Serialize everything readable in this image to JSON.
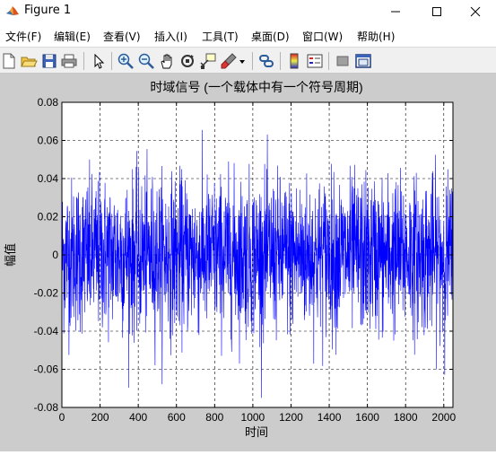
{
  "window": {
    "title": "Figure 1",
    "minimize_glyph": "—",
    "maximize_glyph": "☐",
    "close_glyph": "✕"
  },
  "menu": [
    {
      "label": "文件(F)"
    },
    {
      "label": "编辑(E)"
    },
    {
      "label": "查看(V)"
    },
    {
      "label": "插入(I)"
    },
    {
      "label": "工具(T)"
    },
    {
      "label": "桌面(D)"
    },
    {
      "label": "窗口(W)"
    },
    {
      "label": "帮助(H)"
    }
  ],
  "toolbar": {
    "items": [
      {
        "name": "new-figure-icon"
      },
      {
        "name": "open-file-icon"
      },
      {
        "name": "save-icon"
      },
      {
        "name": "print-icon"
      },
      {
        "name": "edit-plot-arrow-icon"
      },
      {
        "name": "zoom-in-icon"
      },
      {
        "name": "zoom-out-icon"
      },
      {
        "name": "pan-hand-icon"
      },
      {
        "name": "rotate-3d-icon"
      },
      {
        "name": "data-cursor-icon"
      },
      {
        "name": "brush-icon"
      },
      {
        "name": "brush-dropdown-icon"
      },
      {
        "name": "link-plot-icon"
      },
      {
        "name": "colorbar-icon"
      },
      {
        "name": "legend-icon"
      },
      {
        "name": "hide-plot-tools-icon"
      },
      {
        "name": "show-plot-tools-icon"
      }
    ]
  },
  "chart_data": {
    "type": "line",
    "title": "时域信号 (一个载体中有一个符号周期)",
    "xlabel": "时间",
    "ylabel": "幅值",
    "xlim": [
      0,
      2048
    ],
    "ylim": [
      -0.08,
      0.08
    ],
    "xticks": [
      0,
      200,
      400,
      600,
      800,
      1000,
      1200,
      1400,
      1600,
      1800,
      2000
    ],
    "xtick_labels": [
      "0",
      "200",
      "400",
      "600",
      "800",
      "1000",
      "1200",
      "1400",
      "1600",
      "1800",
      "2000"
    ],
    "yticks": [
      0.08,
      0.06,
      0.04,
      0.02,
      0,
      -0.02,
      -0.04,
      -0.06,
      -0.08
    ],
    "ytick_labels": [
      "0.08",
      "0.06",
      "0.04",
      "0.02",
      "0",
      "-0.02",
      "-0.04",
      "-0.06",
      "-0.08"
    ],
    "grid": true,
    "grid_style": "dashed",
    "series_color": "#0000ff",
    "series_length": 2048,
    "amplitude_std": 0.02,
    "peak_max": 0.074,
    "peak_min": -0.075,
    "background": "#ffffff",
    "figure_background": "#cccccc"
  }
}
